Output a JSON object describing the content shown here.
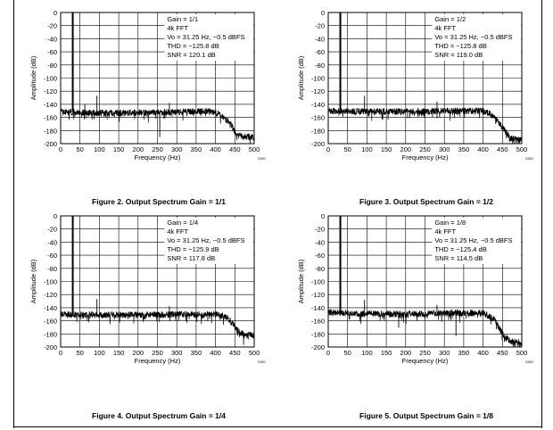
{
  "chart_data": [
    {
      "type": "line",
      "title": "Figure 2. Output Spectrum Gain = 1/1",
      "xlabel": "Frequency (Hz)",
      "ylabel": "Amplitude (dB)",
      "xlim": [
        0,
        500
      ],
      "ylim": [
        -200,
        0
      ],
      "xticks": [
        "0",
        "50",
        "100",
        "150",
        "200",
        "250",
        "300",
        "350",
        "400",
        "450",
        "500"
      ],
      "yticks": [
        "0",
        "-20",
        "-40",
        "-60",
        "-80",
        "-100",
        "-120",
        "-140",
        "-160",
        "-180",
        "-200"
      ],
      "legend": [
        "Gain = 1/1",
        "4k FFT",
        "Vo = 31.25 Hz, −0.5 dBFS",
        "THD = −125.8 dB",
        "SNR = 120.1 dB"
      ],
      "fundamental": {
        "x": 31.25,
        "y": -0.5
      },
      "spurs": [
        {
          "x": 62.5,
          "y": -140
        },
        {
          "x": 93.75,
          "y": -127
        },
        {
          "x": 256,
          "y": -190
        },
        {
          "x": 281,
          "y": -138
        }
      ],
      "floor": {
        "x": [
          0,
          100,
          200,
          300,
          380,
          410,
          440,
          455,
          500
        ],
        "y": [
          -152,
          -153,
          -153,
          -152,
          -150,
          -155,
          -170,
          -188,
          -190
        ]
      }
    },
    {
      "type": "line",
      "title": "Figure 3. Output Spectrum Gain = 1/2",
      "xlabel": "Frequency (Hz)",
      "ylabel": "Amplitude (dB)",
      "xlim": [
        0,
        500
      ],
      "ylim": [
        -200,
        0
      ],
      "xticks": [
        "0",
        "50",
        "100",
        "150",
        "200",
        "250",
        "300",
        "350",
        "400",
        "450",
        "500"
      ],
      "yticks": [
        "0",
        "-20",
        "-40",
        "-60",
        "-80",
        "-100",
        "-120",
        "-140",
        "-160",
        "-180",
        "-200"
      ],
      "legend": [
        "Gain = 1/2",
        "4k FFT",
        "Vo = 31.25 Hz, −0.5 dBFS",
        "THD = −125.8 dB",
        "SNR = 119.0 dB"
      ],
      "fundamental": {
        "x": 31.25,
        "y": -0.5
      },
      "spurs": [
        {
          "x": 93.75,
          "y": -127
        },
        {
          "x": 281,
          "y": -136
        }
      ],
      "floor": {
        "x": [
          0,
          100,
          200,
          300,
          400,
          420,
          450,
          470,
          500
        ],
        "y": [
          -150,
          -151,
          -151,
          -150,
          -150,
          -155,
          -175,
          -192,
          -195
        ]
      }
    },
    {
      "type": "line",
      "title": "Figure 4. Output Spectrum Gain = 1/4",
      "xlabel": "Frequency (Hz)",
      "ylabel": "Amplitude (dB)",
      "xlim": [
        0,
        500
      ],
      "ylim": [
        -200,
        0
      ],
      "xticks": [
        "0",
        "50",
        "100",
        "150",
        "200",
        "250",
        "300",
        "350",
        "400",
        "450",
        "500"
      ],
      "yticks": [
        "0",
        "-20",
        "-40",
        "-60",
        "-80",
        "-100",
        "-120",
        "-140",
        "-160",
        "-180",
        "-200"
      ],
      "legend": [
        "Gain = 1/4",
        "4k FFT",
        "Vo = 31.25 Hz, −0.5 dBFS",
        "THD = −125.9 dB",
        "SNR = 117.8 dB"
      ],
      "fundamental": {
        "x": 31.25,
        "y": -0.5
      },
      "spurs": [
        {
          "x": 93.75,
          "y": -127
        },
        {
          "x": 281,
          "y": -138
        }
      ],
      "floor": {
        "x": [
          0,
          100,
          200,
          300,
          400,
          430,
          460,
          475,
          500
        ],
        "y": [
          -150,
          -151,
          -151,
          -150,
          -150,
          -155,
          -175,
          -182,
          -182
        ]
      }
    },
    {
      "type": "line",
      "title": "Figure 5. Output Spectrum Gain = 1/8",
      "xlabel": "Frequency (Hz)",
      "ylabel": "Amplitude (dB)",
      "xlim": [
        0,
        500
      ],
      "ylim": [
        -200,
        0
      ],
      "xticks": [
        "0",
        "50",
        "100",
        "150",
        "200",
        "250",
        "300",
        "350",
        "400",
        "450",
        "500"
      ],
      "yticks": [
        "0",
        "-20",
        "-40",
        "-60",
        "-80",
        "-100",
        "-120",
        "-140",
        "-160",
        "-180",
        "-200"
      ],
      "legend": [
        "Gain = 1/8",
        "4k FFT",
        "Vo = 31.25 Hz, −0.5 dBFS",
        "THD = −125.4 dB",
        "SNR = 114.5 dB"
      ],
      "fundamental": {
        "x": 31.25,
        "y": -0.5
      },
      "spurs": [
        {
          "x": 93.75,
          "y": -128
        },
        {
          "x": 182,
          "y": -170
        },
        {
          "x": 281,
          "y": -136
        },
        {
          "x": 330,
          "y": -183
        }
      ],
      "floor": {
        "x": [
          0,
          100,
          200,
          300,
          400,
          430,
          455,
          475,
          500
        ],
        "y": [
          -147,
          -149,
          -150,
          -148,
          -148,
          -158,
          -185,
          -192,
          -192
        ]
      }
    }
  ]
}
